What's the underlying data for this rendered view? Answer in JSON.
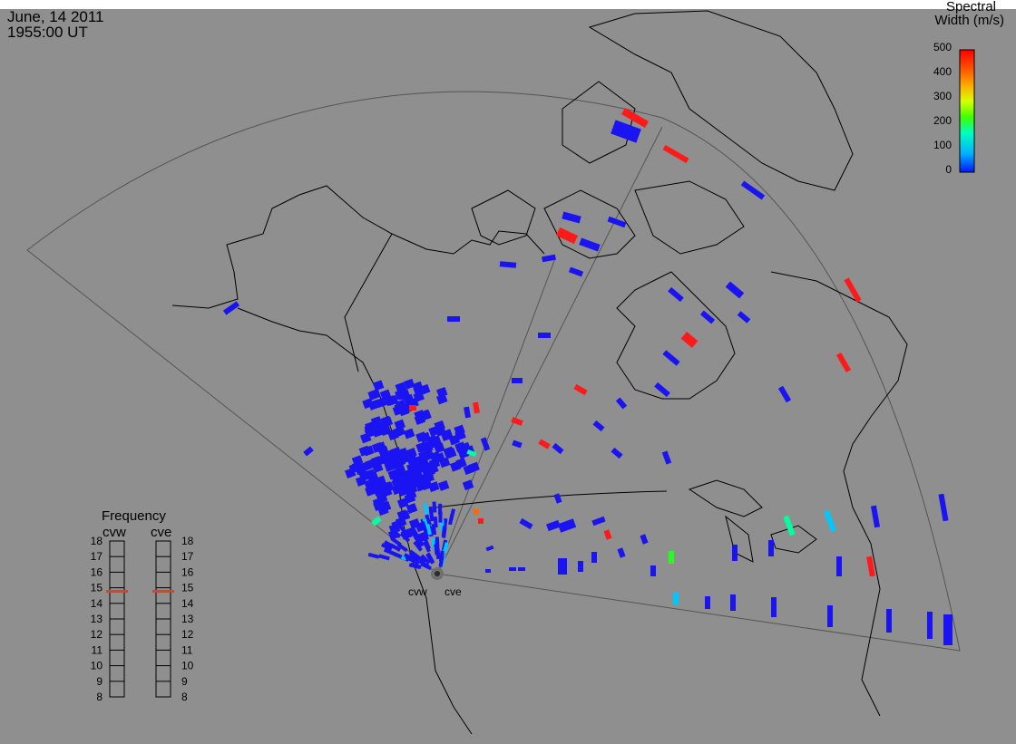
{
  "header": {
    "date": "June, 14 2011",
    "time": "1955:00 UT"
  },
  "colors": {
    "background": "#8f8f8f",
    "coastline": "#000000",
    "fov_outline": "#555555",
    "freq_marker": "#e0401e"
  },
  "colorbar": {
    "title_line1": "Spectral",
    "title_line2": "Width (m/s)",
    "range": [
      0,
      500
    ],
    "ticks": [
      "500",
      "400",
      "300",
      "200",
      "100",
      "0"
    ],
    "colormap": [
      "#0018ff",
      "#00b0ff",
      "#00ffc0",
      "#40ff00",
      "#d8ff00",
      "#ffb000",
      "#ff5000",
      "#ff0000"
    ]
  },
  "radars": {
    "cvw": "cvw",
    "cve": "cve"
  },
  "frequency_panel": {
    "title": "Frequency",
    "scale_min_mhz": 8,
    "scale_max_mhz": 18,
    "ticks": [
      "18",
      "17",
      "16",
      "15",
      "14",
      "13",
      "12",
      "11",
      "10",
      "9",
      "8"
    ],
    "cvw_label": "cvw",
    "cve_label": "cve",
    "cvw_freq_mhz": 14.8,
    "cve_freq_mhz": 14.8
  },
  "scatter_cells_sample": [
    {
      "width_ms": 0,
      "region": "west"
    },
    {
      "width_ms": 500,
      "region": "arctic"
    },
    {
      "width_ms": 150,
      "region": "east"
    },
    {
      "width_ms": 250,
      "region": "east"
    },
    {
      "width_ms": 380,
      "region": "central"
    }
  ]
}
